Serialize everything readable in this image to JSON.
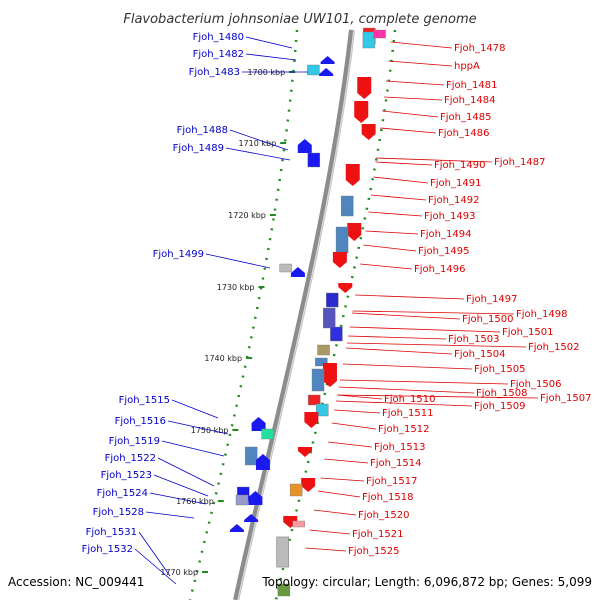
{
  "map": {
    "title": "Flavobacterium johnsoniae UW101, complete genome",
    "accession": "Accession: NC_009441",
    "topology": "Topology: circular; Length: 6,096,872 bp; Genes: 5,099",
    "colors": {
      "forward_label": "#0000cc",
      "reverse_label": "#dd0000",
      "forward_arrow": "#1a1aee",
      "reverse_arrow": "#ee1111",
      "backbone": "#888888",
      "tick": "#228b22"
    },
    "kbp_marks": [
      "1700 kbp",
      "1710 kbp",
      "1720 kbp",
      "1730 kbp",
      "1740 kbp",
      "1750 kbp",
      "1760 kbp",
      "1770 kbp"
    ],
    "left_genes": [
      "Fjoh_1480",
      "Fjoh_1482",
      "Fjoh_1483",
      "Fjoh_1488",
      "Fjoh_1489",
      "Fjoh_1499",
      "Fjoh_1515",
      "Fjoh_1516",
      "Fjoh_1519",
      "Fjoh_1522",
      "Fjoh_1523",
      "Fjoh_1524",
      "Fjoh_1528",
      "Fjoh_1531",
      "Fjoh_1532"
    ],
    "right_genes": [
      "Fjoh_1478",
      "hppA",
      "Fjoh_1481",
      "Fjoh_1484",
      "Fjoh_1485",
      "Fjoh_1486",
      "Fjoh_1487",
      "Fjoh_1490",
      "Fjoh_1491",
      "Fjoh_1492",
      "Fjoh_1493",
      "Fjoh_1494",
      "Fjoh_1495",
      "Fjoh_1496",
      "Fjoh_1497",
      "Fjoh_1498",
      "Fjoh_1500",
      "Fjoh_1501",
      "Fjoh_1502",
      "Fjoh_1503",
      "Fjoh_1504",
      "Fjoh_1505",
      "Fjoh_1506",
      "Fjoh_1507",
      "Fjoh_1508",
      "Fjoh_1509",
      "Fjoh_1510",
      "Fjoh_1511",
      "Fjoh_1512",
      "Fjoh_1513",
      "Fjoh_1514",
      "Fjoh_1517",
      "Fjoh_1518",
      "Fjoh_1520",
      "Fjoh_1521",
      "Fjoh_1525"
    ]
  }
}
